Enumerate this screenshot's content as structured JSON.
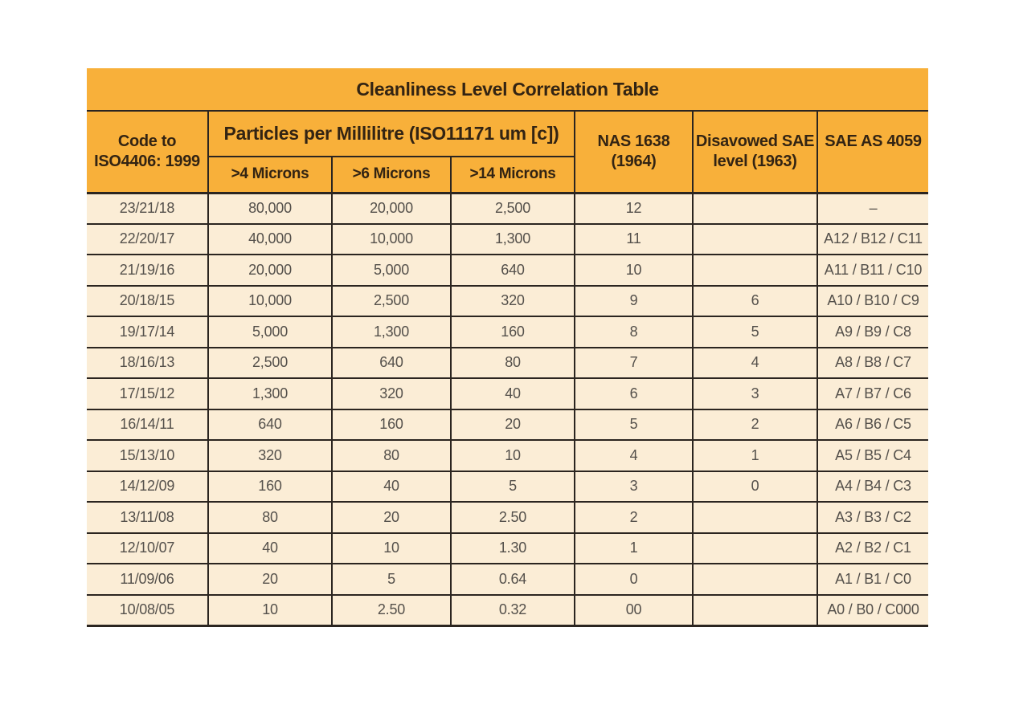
{
  "colors": {
    "header_orange": "#F8B03A",
    "row_cream": "#FBEDD6",
    "border_dark": "#2B2520",
    "header_text": "#332413",
    "data_text": "#54504B",
    "page_bg": "#FFFFFF"
  },
  "table": {
    "title": "Cleanliness Level Correlation Table",
    "headers": {
      "code_line1": "Code to",
      "code_line2": "ISO4406: 1999",
      "particles_group": "Particles per Millilitre (ISO11171 um [c])",
      "sub_columns": [
        ">4 Microns",
        ">6 Microns",
        ">14 Microns"
      ],
      "nas_line1": "NAS 1638",
      "nas_line2": "(1964)",
      "disavowed_line1": "Disavowed SAE",
      "disavowed_line2": "level (1963)",
      "sae": "SAE AS 4059"
    },
    "rows": [
      {
        "code": "23/21/18",
        "gt4": "80,000",
        "gt6": "20,000",
        "gt14": "2,500",
        "nas": "12",
        "disavowed": "",
        "sae": "–"
      },
      {
        "code": "22/20/17",
        "gt4": "40,000",
        "gt6": "10,000",
        "gt14": "1,300",
        "nas": "11",
        "disavowed": "",
        "sae": "A12 / B12 / C11"
      },
      {
        "code": "21/19/16",
        "gt4": "20,000",
        "gt6": "5,000",
        "gt14": "640",
        "nas": "10",
        "disavowed": "",
        "sae": "A11 / B11 / C10"
      },
      {
        "code": "20/18/15",
        "gt4": "10,000",
        "gt6": "2,500",
        "gt14": "320",
        "nas": "9",
        "disavowed": "6",
        "sae": "A10 / B10 / C9"
      },
      {
        "code": "19/17/14",
        "gt4": "5,000",
        "gt6": "1,300",
        "gt14": "160",
        "nas": "8",
        "disavowed": "5",
        "sae": "A9 / B9 / C8"
      },
      {
        "code": "18/16/13",
        "gt4": "2,500",
        "gt6": "640",
        "gt14": "80",
        "nas": "7",
        "disavowed": "4",
        "sae": "A8 / B8 / C7"
      },
      {
        "code": "17/15/12",
        "gt4": "1,300",
        "gt6": "320",
        "gt14": "40",
        "nas": "6",
        "disavowed": "3",
        "sae": "A7 / B7 / C6"
      },
      {
        "code": "16/14/11",
        "gt4": "640",
        "gt6": "160",
        "gt14": "20",
        "nas": "5",
        "disavowed": "2",
        "sae": "A6 / B6 / C5"
      },
      {
        "code": "15/13/10",
        "gt4": "320",
        "gt6": "80",
        "gt14": "10",
        "nas": "4",
        "disavowed": "1",
        "sae": "A5 / B5 / C4"
      },
      {
        "code": "14/12/09",
        "gt4": "160",
        "gt6": "40",
        "gt14": "5",
        "nas": "3",
        "disavowed": "0",
        "sae": "A4 / B4 / C3"
      },
      {
        "code": "13/11/08",
        "gt4": "80",
        "gt6": "20",
        "gt14": "2.50",
        "nas": "2",
        "disavowed": "",
        "sae": "A3 / B3 / C2"
      },
      {
        "code": "12/10/07",
        "gt4": "40",
        "gt6": "10",
        "gt14": "1.30",
        "nas": "1",
        "disavowed": "",
        "sae": "A2 / B2 / C1"
      },
      {
        "code": "11/09/06",
        "gt4": "20",
        "gt6": "5",
        "gt14": "0.64",
        "nas": "0",
        "disavowed": "",
        "sae": "A1 / B1 / C0"
      },
      {
        "code": "10/08/05",
        "gt4": "10",
        "gt6": "2.50",
        "gt14": "0.32",
        "nas": "00",
        "disavowed": "",
        "sae": "A0 / B0 / C000"
      }
    ]
  }
}
